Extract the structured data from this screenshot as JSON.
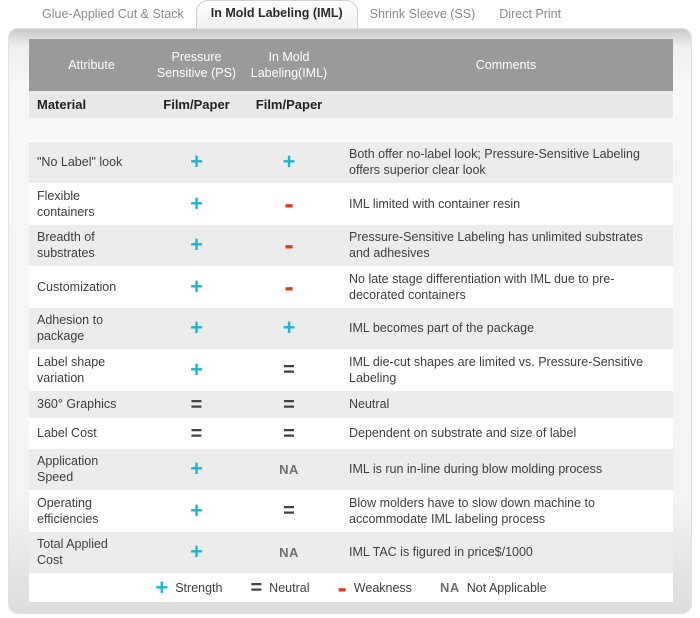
{
  "tabs": [
    {
      "label": "Glue-Applied Cut & Stack",
      "active": false
    },
    {
      "label": "In Mold Labeling (IML)",
      "active": true
    },
    {
      "label": "Shrink Sleeve (SS)",
      "active": false
    },
    {
      "label": "Direct Print",
      "active": false
    }
  ],
  "table": {
    "headers": {
      "attribute": "Attribute",
      "ps": "Pressure Sensitive (PS)",
      "iml": "In Mold Labeling(IML)",
      "comments": "Comments"
    },
    "material_row": {
      "attribute": "Material",
      "ps": "Film/Paper",
      "iml": "Film/Paper"
    },
    "rows": [
      {
        "attribute": "\"No Label\" look",
        "ps": {
          "glyph": "+",
          "type": "plus"
        },
        "iml": {
          "glyph": "+",
          "type": "plus"
        },
        "comment": "Both offer no-label look; Pressure-Sensitive Labeling offers superior clear look"
      },
      {
        "attribute": "Flexible containers",
        "ps": {
          "glyph": "+",
          "type": "plus"
        },
        "iml": {
          "glyph": "-",
          "type": "minus"
        },
        "comment": "IML limited with container resin"
      },
      {
        "attribute": "Breadth of substrates",
        "ps": {
          "glyph": "+",
          "type": "plus"
        },
        "iml": {
          "glyph": "-",
          "type": "minus"
        },
        "comment": "Pressure-Sensitive Labeling has unlimited substrates and adhesives"
      },
      {
        "attribute": "Customization",
        "ps": {
          "glyph": "+",
          "type": "plus"
        },
        "iml": {
          "glyph": "-",
          "type": "minus"
        },
        "comment": "No late stage differentiation with IML due to pre-decorated containers"
      },
      {
        "attribute": "Adhesion to package",
        "ps": {
          "glyph": "+",
          "type": "plus"
        },
        "iml": {
          "glyph": "+",
          "type": "plus"
        },
        "comment": "IML becomes part of the package"
      },
      {
        "attribute": "Label shape variation",
        "ps": {
          "glyph": "+",
          "type": "plus"
        },
        "iml": {
          "glyph": "=",
          "type": "equals"
        },
        "comment": "IML die-cut shapes are limited vs. Pressure-Sensitive Labeling"
      },
      {
        "attribute": "360° Graphics",
        "ps": {
          "glyph": "=",
          "type": "equals"
        },
        "iml": {
          "glyph": "=",
          "type": "equals"
        },
        "comment": "Neutral"
      },
      {
        "attribute": "Label Cost",
        "ps": {
          "glyph": "=",
          "type": "equals"
        },
        "iml": {
          "glyph": "=",
          "type": "equals"
        },
        "comment": "Dependent on substrate and size of label"
      },
      {
        "attribute": "Application Speed",
        "ps": {
          "glyph": "+",
          "type": "plus"
        },
        "iml": {
          "glyph": "NA",
          "type": "na"
        },
        "comment": "IML is run in-line during blow molding process"
      },
      {
        "attribute": "Operating efficiencies",
        "ps": {
          "glyph": "+",
          "type": "plus"
        },
        "iml": {
          "glyph": "=",
          "type": "equals"
        },
        "comment": "Blow molders have to slow down machine to accommodate IML labeling process"
      },
      {
        "attribute": "Total Applied Cost",
        "ps": {
          "glyph": "+",
          "type": "plus"
        },
        "iml": {
          "glyph": "NA",
          "type": "na"
        },
        "comment": "IML TAC is figured in price$/1000"
      }
    ]
  },
  "legend": {
    "items": [
      {
        "glyph": "+",
        "type": "plus",
        "label": "Strength"
      },
      {
        "glyph": "=",
        "type": "equals",
        "label": "Neutral"
      },
      {
        "glyph": "-",
        "type": "minus",
        "label": "Weakness"
      },
      {
        "glyph": "NA",
        "type": "na",
        "label": "Not Applicable"
      }
    ]
  },
  "colors": {
    "strength": "#18b7d0",
    "weakness": "#e03a1e",
    "neutral": "#434343",
    "not_applicable": "#6f6f6f",
    "header_bg": "#9a9a9a"
  }
}
